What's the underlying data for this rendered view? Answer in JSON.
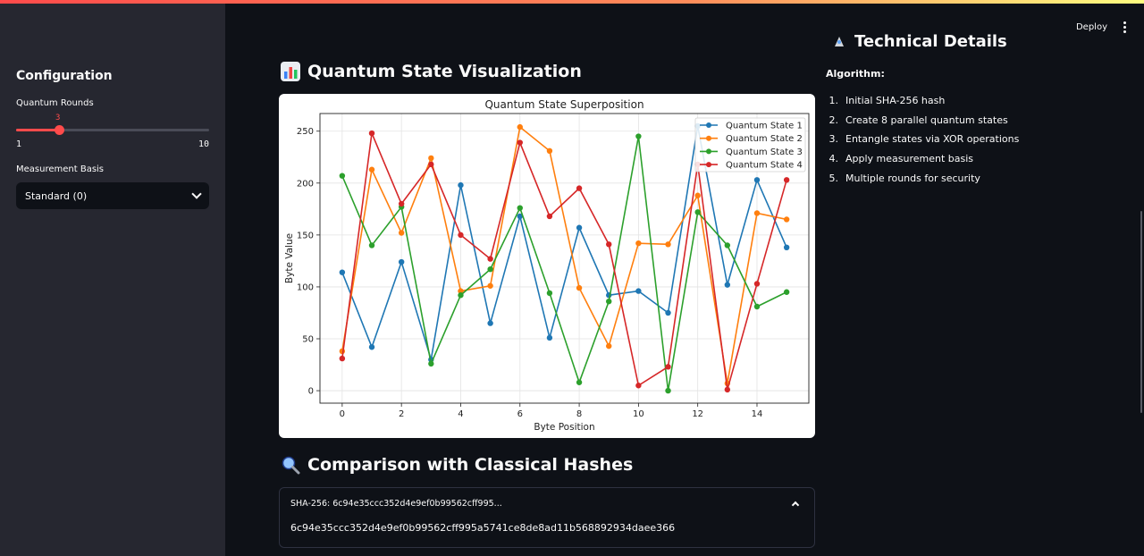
{
  "header": {
    "deploy_label": "Deploy"
  },
  "sidebar": {
    "title": "Configuration",
    "quantum_rounds": {
      "label": "Quantum Rounds",
      "value": 3,
      "min": 1,
      "max": 10,
      "value_text": "3",
      "min_text": "1",
      "max_text": "10"
    },
    "measurement_basis": {
      "label": "Measurement Basis",
      "selected": "Standard (0)"
    }
  },
  "viz": {
    "heading": "Quantum State Visualization",
    "icon": "bar-chart-icon"
  },
  "chart_data": {
    "type": "line",
    "title": "Quantum State Superposition",
    "xlabel": "Byte Position",
    "ylabel": "Byte Value",
    "x": [
      0,
      1,
      2,
      3,
      4,
      5,
      6,
      7,
      8,
      9,
      10,
      11,
      12,
      13,
      14,
      15
    ],
    "xticks": [
      0,
      2,
      4,
      6,
      8,
      10,
      12,
      14
    ],
    "xtick_labels": [
      "0",
      "2",
      "4",
      "6",
      "8",
      "10",
      "12",
      "14"
    ],
    "yticks": [
      0,
      50,
      100,
      150,
      200,
      250
    ],
    "ytick_labels": [
      "0",
      "50",
      "100",
      "150",
      "200",
      "250"
    ],
    "xlim": [
      -0.75,
      15.75
    ],
    "ylim": [
      -12,
      267
    ],
    "grid": true,
    "legend_position": "top-right",
    "series": [
      {
        "name": "Quantum State 1",
        "color": "#1f77b4",
        "values": [
          114,
          42,
          124,
          30,
          198,
          65,
          168,
          51,
          157,
          92,
          96,
          75,
          255,
          102,
          203,
          138
        ]
      },
      {
        "name": "Quantum State 2",
        "color": "#ff7f0e",
        "values": [
          38,
          213,
          152,
          224,
          96,
          101,
          254,
          231,
          99,
          43,
          142,
          141,
          188,
          7,
          171,
          165
        ]
      },
      {
        "name": "Quantum State 3",
        "color": "#2ca02c",
        "values": [
          207,
          140,
          177,
          26,
          92,
          117,
          176,
          94,
          8,
          86,
          245,
          0,
          172,
          140,
          81,
          95
        ]
      },
      {
        "name": "Quantum State 4",
        "color": "#d62728",
        "values": [
          31,
          248,
          180,
          218,
          150,
          127,
          239,
          168,
          195,
          141,
          5,
          23,
          218,
          1,
          103,
          203
        ]
      }
    ]
  },
  "technical": {
    "heading": "Technical Details",
    "icon": "rocket-icon",
    "algorithm_label": "Algorithm:",
    "steps": [
      {
        "n": "1.",
        "text": "Initial SHA-256 hash"
      },
      {
        "n": "2.",
        "text": "Create 8 parallel quantum states"
      },
      {
        "n": "3.",
        "text": "Entangle states via XOR operations"
      },
      {
        "n": "4.",
        "text": "Apply measurement basis"
      },
      {
        "n": "5.",
        "text": "Multiple rounds for security"
      }
    ]
  },
  "comparison": {
    "heading": "Comparison with Classical Hashes",
    "icon": "magnifier-icon",
    "expander_label": "SHA-256: 6c94e35ccc352d4e9ef0b99562cff995...",
    "hash_value": "6c94e35ccc352d4e9ef0b99562cff995a5741ce8de8ad11b568892934daee366"
  }
}
